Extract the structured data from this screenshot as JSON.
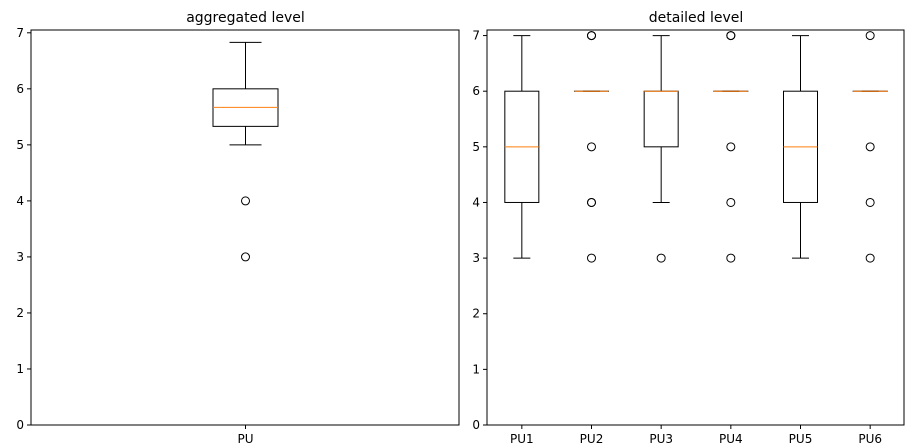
{
  "colors": {
    "box": "#000000",
    "median": "#ff7f0e",
    "background": "#ffffff"
  },
  "chart_data": [
    {
      "type": "box",
      "title": "aggregated level",
      "xlabel": "",
      "ylabel": "",
      "ylim": [
        0,
        7.05
      ],
      "yticks": [
        "0",
        "1",
        "2",
        "3",
        "4",
        "5",
        "6",
        "7"
      ],
      "grid": false,
      "categories": [
        "PU"
      ],
      "boxes": [
        {
          "q1": 5.33,
          "median": 5.67,
          "q3": 6.0,
          "whisker_low": 5.0,
          "whisker_high": 6.83,
          "outliers": [
            4,
            3
          ]
        }
      ]
    },
    {
      "type": "box",
      "title": "detailed level",
      "xlabel": "",
      "ylabel": "",
      "ylim": [
        0,
        7.1
      ],
      "yticks": [
        "0",
        "1",
        "2",
        "3",
        "4",
        "5",
        "6",
        "7"
      ],
      "grid": false,
      "categories": [
        "PU1",
        "PU2",
        "PU3",
        "PU4",
        "PU5",
        "PU6"
      ],
      "boxes": [
        {
          "q1": 4,
          "median": 5,
          "q3": 6,
          "whisker_low": 3,
          "whisker_high": 7,
          "outliers": []
        },
        {
          "q1": 6,
          "median": 6,
          "q3": 6,
          "whisker_low": 6,
          "whisker_high": 6,
          "outliers": [
            7,
            7,
            5,
            4,
            4,
            3
          ]
        },
        {
          "q1": 5,
          "median": 6,
          "q3": 6,
          "whisker_low": 4,
          "whisker_high": 7,
          "outliers": [
            3
          ]
        },
        {
          "q1": 6,
          "median": 6,
          "q3": 6,
          "whisker_low": 6,
          "whisker_high": 6,
          "outliers": [
            7,
            7,
            5,
            4,
            3
          ]
        },
        {
          "q1": 4,
          "median": 5,
          "q3": 6,
          "whisker_low": 3,
          "whisker_high": 7,
          "outliers": []
        },
        {
          "q1": 6,
          "median": 6,
          "q3": 6,
          "whisker_low": 6,
          "whisker_high": 6,
          "outliers": [
            7,
            5,
            4,
            3
          ]
        }
      ]
    }
  ]
}
